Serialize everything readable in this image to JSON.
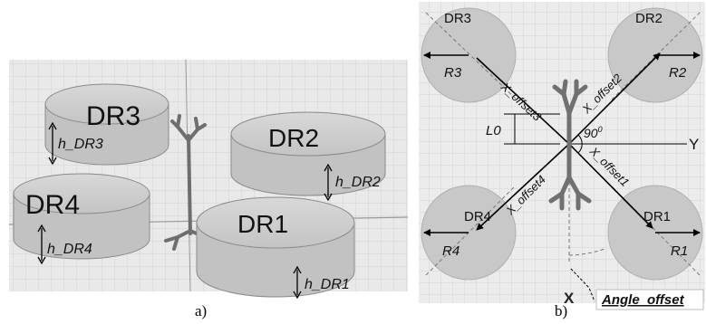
{
  "panel_a": {
    "caption": "a)",
    "resonators": {
      "dr1": "DR1",
      "dr2": "DR2",
      "dr3": "DR3",
      "dr4": "DR4"
    },
    "heights": {
      "h1": "h_DR1",
      "h2": "h_DR2",
      "h3": "h_DR3",
      "h4": "h_DR4"
    }
  },
  "panel_b": {
    "caption": "b)",
    "resonators": {
      "dr1": "DR1",
      "dr2": "DR2",
      "dr3": "DR3",
      "dr4": "DR4"
    },
    "radii": {
      "r1": "R1",
      "r2": "R2",
      "r3": "R3",
      "r4": "R4"
    },
    "offsets": {
      "o1": "X_offset1",
      "o2": "X_offset2",
      "o3": "X_offset3",
      "o4": "X_offset4"
    },
    "feed_length": "L0",
    "angle_label": "90",
    "angle_unit": "0",
    "axis_x": "X",
    "axis_y": "Y",
    "angle_offset": "Angle_offset"
  }
}
